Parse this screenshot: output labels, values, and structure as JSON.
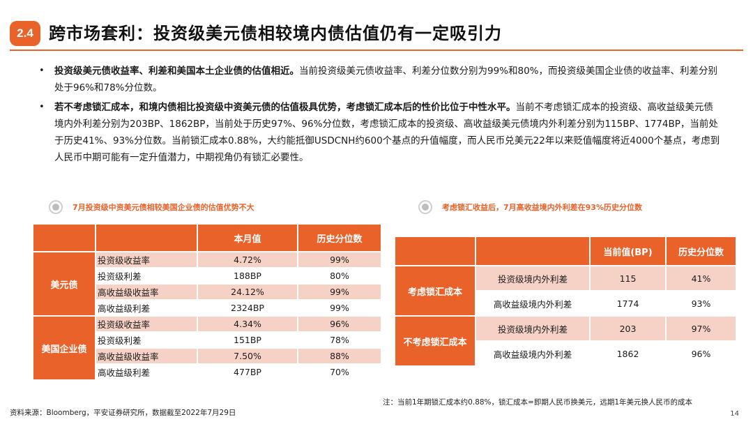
{
  "section_number": "2.4",
  "title": "跨市场套利：投资级美元债相较境内债估值仍有一定吸引力",
  "bullets": [
    {
      "bold": "投资级美元债收益率、利差和美国本土企业债的估值相近。",
      "text": "当前投资级美元债收益率、利差分位数分别为99%和80%，而投资级美国企业债的收益率、利差分别处于96%和78%分位数。"
    },
    {
      "bold": "若不考虑锁汇成本，和境内债相比投资级中资美元债的估值极具优势，考虑锁汇成本后的性价比位于中性水平。",
      "text": "当前不考虑锁汇成本的投资级、高收益级美元债境内外利差分别为203BP、1862BP，当前处于历史97%、96%分位数，考虑锁汇成本的投资级、高收益级美元债境内外利差分别为115BP、1774BP，当前处于历史41%、93%分位数。当前锁汇成本0.88%，大约能抵御USDCNH约600个基点的升值幅度，而人民币兑美元22年以来贬值幅度将近4000个基点，考虑到人民币中期可能有一定升值潜力，中期视角仍有锁汇必要性。"
    }
  ],
  "bullet_marker": "•",
  "left_caption": "7月投资级中资美元债相较美国企业债的估值优势不大",
  "right_caption": "考虑锁汇收益后，7月高收益境内外利差在93%历史分位数",
  "table1": {
    "headers": [
      "",
      "",
      "本月值",
      "历史分位数"
    ],
    "groups": [
      {
        "name": "美元债",
        "rows": [
          {
            "label": "投资级收益率",
            "value": "4.72%",
            "pct": "99%"
          },
          {
            "label": "投资级利差",
            "value": "188BP",
            "pct": "80%"
          },
          {
            "label": "高收益级收益率",
            "value": "24.12%",
            "pct": "99%"
          },
          {
            "label": "高收益级利差",
            "value": "2324BP",
            "pct": "99%"
          }
        ]
      },
      {
        "name": "美国企业债",
        "rows": [
          {
            "label": "投资级收益率",
            "value": "4.34%",
            "pct": "96%"
          },
          {
            "label": "投资级利差",
            "value": "151BP",
            "pct": "78%"
          },
          {
            "label": "高收益级收益率",
            "value": "7.50%",
            "pct": "88%"
          },
          {
            "label": "高收益级利差",
            "value": "477BP",
            "pct": "70%"
          }
        ]
      }
    ]
  },
  "table2": {
    "headers": [
      "",
      "",
      "当前值(BP)",
      "历史分位数"
    ],
    "groups": [
      {
        "name": "考虑锁汇成本",
        "rows": [
          {
            "label": "投资级境内外利差",
            "value": "115",
            "pct": "41%"
          },
          {
            "label": "高收益级境内外利差",
            "value": "1774",
            "pct": "93%"
          }
        ]
      },
      {
        "name": "不考虑锁汇成本",
        "rows": [
          {
            "label": "投资级境内外利差",
            "value": "203",
            "pct": "97%"
          },
          {
            "label": "高收益级境内外利差",
            "value": "1862",
            "pct": "96%"
          }
        ]
      }
    ]
  },
  "source": "资料来源：Bloomberg，平安证券研究所，数据截至2022年7月29日",
  "note": "注：当前1年期锁汇成本约0.88%，锁汇成本=即期人民币换美元，远期1年美元换人民币的成本",
  "page_number": "14",
  "colors": {
    "accent": "#e8622a",
    "row_shade": "#f6d2c6",
    "caption_icon": "#bdbdbd"
  }
}
